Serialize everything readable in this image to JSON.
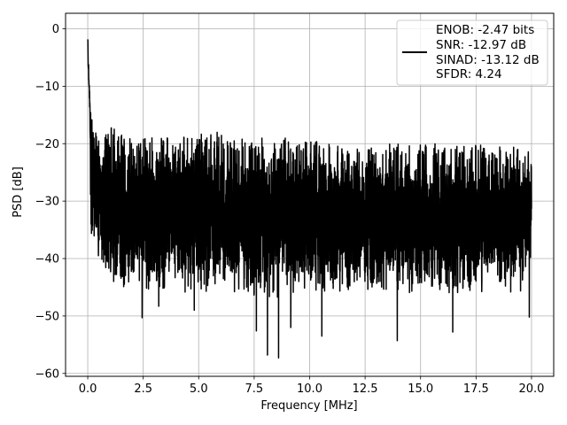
{
  "chart_data": {
    "type": "line",
    "title": "",
    "xlabel": "Frequency [MHz]",
    "ylabel": "PSD [dB]",
    "xlim": [
      -1.0,
      21.0
    ],
    "ylim": [
      -60.5,
      2.7
    ],
    "x_ticks": [
      0.0,
      2.5,
      5.0,
      7.5,
      10.0,
      12.5,
      15.0,
      17.5,
      20.0
    ],
    "x_tick_labels": [
      "0.0",
      "2.5",
      "5.0",
      "7.5",
      "10.0",
      "12.5",
      "15.0",
      "17.5",
      "20.0"
    ],
    "y_ticks": [
      0,
      -10,
      -20,
      -30,
      -40,
      -50,
      -60
    ],
    "y_tick_labels": [
      "0",
      "−10",
      "−20",
      "−30",
      "−40",
      "−50",
      "−60"
    ],
    "grid": true,
    "legend_position": "top-right",
    "legend_lines": [
      "ENOB: -2.47 bits",
      "SNR: -12.97 dB",
      "SINAD: -13.12 dB",
      "SFDR: 4.24"
    ],
    "series": [
      {
        "color": "#000000",
        "x": [
          0.0,
          0.02,
          0.04,
          0.06,
          0.08,
          0.1,
          0.15,
          0.2,
          0.3,
          0.5,
          0.75,
          1.0,
          1.5,
          2.0,
          2.5,
          3.0,
          3.5,
          4.0,
          4.5,
          5.0,
          5.5,
          6.0,
          6.5,
          7.0,
          7.5,
          8.0,
          8.5,
          9.0,
          9.5,
          10.0,
          10.5,
          11.0,
          11.5,
          12.0,
          12.5,
          13.0,
          13.5,
          14.0,
          14.5,
          15.0,
          15.5,
          16.0,
          16.5,
          17.0,
          17.5,
          18.0,
          18.5,
          19.0,
          19.5,
          20.0
        ],
        "y_max": [
          0,
          -4,
          -6,
          -8,
          -10,
          -12,
          -14,
          -15,
          -17,
          -18,
          -18,
          -17,
          -18,
          -19,
          -19,
          -18,
          -18,
          -19,
          -18,
          -18,
          -18,
          -18,
          -19,
          -19,
          -19,
          -19,
          -19,
          -19,
          -19,
          -19,
          -20,
          -20,
          -20,
          -20,
          -20,
          -20,
          -20,
          -20,
          -20,
          -20,
          -20,
          -20,
          -20,
          -20,
          -20,
          -20,
          -20,
          -20,
          -21,
          -21
        ],
        "y_min": [
          -8,
          -12,
          -14,
          -15,
          -20,
          -33,
          -36,
          -37,
          -38,
          -40,
          -42,
          -44,
          -45,
          -45,
          -45,
          -46,
          -46,
          -46,
          -47,
          -47,
          -46,
          -46,
          -46,
          -46,
          -47,
          -47,
          -47,
          -46,
          -46,
          -46,
          -46,
          -46,
          -46,
          -46,
          -46,
          -46,
          -46,
          -46,
          -46,
          -46,
          -46,
          -46,
          -46,
          -46,
          -46,
          -46,
          -46,
          -46,
          -46,
          -40
        ],
        "deep_dips": [
          {
            "x": 2.45,
            "y": -50.3
          },
          {
            "x": 3.2,
            "y": -48.3
          },
          {
            "x": 4.8,
            "y": -49.0
          },
          {
            "x": 7.6,
            "y": -52.6
          },
          {
            "x": 8.1,
            "y": -56.8
          },
          {
            "x": 8.6,
            "y": -57.3
          },
          {
            "x": 9.15,
            "y": -52.0
          },
          {
            "x": 10.55,
            "y": -53.5
          },
          {
            "x": 13.95,
            "y": -54.3
          },
          {
            "x": 16.45,
            "y": -52.8
          },
          {
            "x": 19.9,
            "y": -50.2
          }
        ]
      }
    ]
  }
}
